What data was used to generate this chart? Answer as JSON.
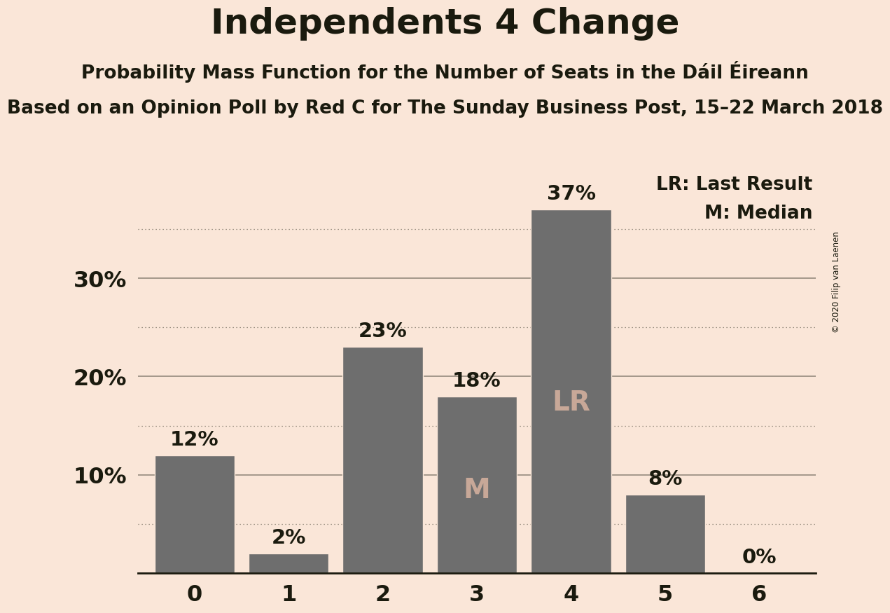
{
  "title": "Independents 4 Change",
  "subtitle1": "Probability Mass Function for the Number of Seats in the Dáil Éireann",
  "subtitle2": "Based on an Opinion Poll by Red C for The Sunday Business Post, 15–22 March 2018",
  "copyright": "© 2020 Filip van Laenen",
  "categories": [
    0,
    1,
    2,
    3,
    4,
    5,
    6
  ],
  "values": [
    0.12,
    0.02,
    0.23,
    0.18,
    0.37,
    0.08,
    0.0
  ],
  "labels": [
    "12%",
    "2%",
    "23%",
    "18%",
    "37%",
    "8%",
    "0%"
  ],
  "bar_color": "#6e6e6e",
  "background_color": "#fae6d8",
  "text_color": "#1a1a0e",
  "ylim": [
    0,
    0.415
  ],
  "yticks": [
    0.0,
    0.1,
    0.2,
    0.3
  ],
  "ytick_labels": [
    "",
    "10%",
    "20%",
    "30%"
  ],
  "grid_major_color": "#1a1a0e",
  "grid_minor_color": "#1a1a0e",
  "minor_yticks": [
    0.05,
    0.15,
    0.25,
    0.35
  ],
  "lr_bar_index": 4,
  "median_bar_index": 3,
  "lr_label": "LR",
  "median_label": "M",
  "legend_lr": "LR: Last Result",
  "legend_m": "M: Median",
  "label_color_inside": "#c8a898",
  "label_color_outside": "#1a1a0e",
  "title_fontsize": 36,
  "subtitle_fontsize": 19,
  "tick_fontsize": 23,
  "label_fontsize": 21,
  "inside_label_fontsize": 28,
  "legend_fontsize": 19
}
